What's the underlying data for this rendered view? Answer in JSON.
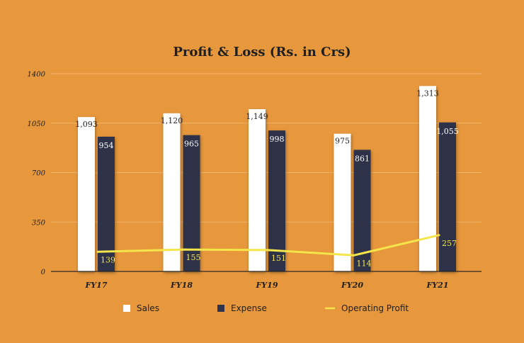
{
  "chart_data": {
    "type": "bar",
    "title": "Profit & Loss (Rs. in Crs)",
    "categories": [
      "FY17",
      "FY18",
      "FY19",
      "FY20",
      "FY21"
    ],
    "yticks": [
      "0",
      "350",
      "700",
      "1050",
      "1400"
    ],
    "ylim": [
      0,
      1400
    ],
    "grid": true,
    "legend_position": "bottom",
    "series": [
      {
        "name": "Sales",
        "kind": "bar",
        "color": "#FFFFFF",
        "values": [
          1093,
          1120,
          1149,
          975,
          1313
        ],
        "labels": [
          "1,093",
          "1,120",
          "1,149",
          "975",
          "1,313"
        ]
      },
      {
        "name": "Expense",
        "kind": "bar",
        "color": "#2F3349",
        "values": [
          954,
          965,
          998,
          861,
          1055
        ],
        "labels": [
          "954",
          "965",
          "998",
          "861",
          "1,055"
        ]
      },
      {
        "name": "Operating Profit",
        "kind": "line",
        "color": "#F4E64A",
        "values": [
          139,
          155,
          151,
          114,
          257
        ],
        "labels": [
          "139",
          "155",
          "151",
          "114",
          "257"
        ]
      }
    ]
  }
}
